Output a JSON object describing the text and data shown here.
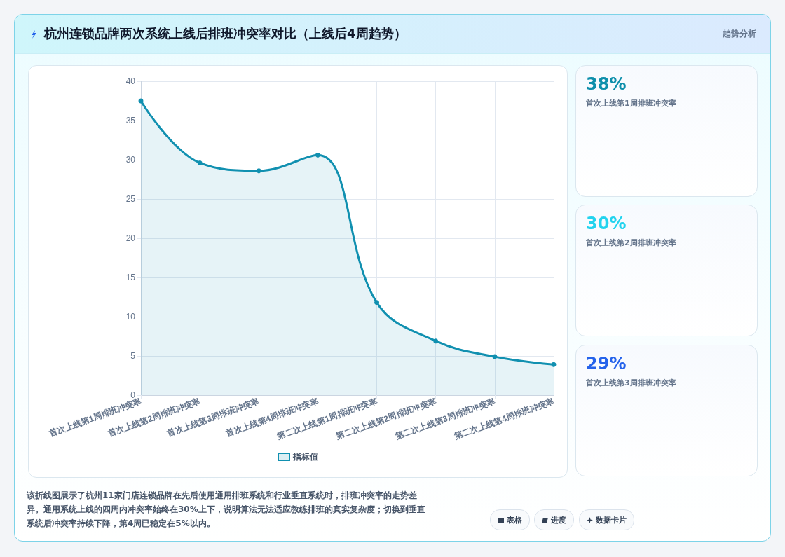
{
  "chart_data": {
    "type": "area",
    "title": "杭州连锁品牌两次系统上线后排班冲突率对比（上线后4周趋势）",
    "categories": [
      "首次上线第1周排班冲突率",
      "首次上线第2周排班冲突率",
      "首次上线第3周排班冲突率",
      "首次上线第4周排班冲突率",
      "第二次上线第1周排班冲突率",
      "第二次上线第2周排班冲突率",
      "第二次上线第3周排班冲突率",
      "第二次上线第4周排班冲突率"
    ],
    "series": [
      {
        "name": "指标值",
        "color": "#1190b0",
        "values": [
          37.5,
          29.6,
          28.6,
          30.6,
          11.8,
          6.9,
          4.9,
          3.9
        ]
      }
    ],
    "ylim": [
      0,
      40
    ],
    "yticks": [
      0,
      5,
      10,
      15,
      20,
      25,
      30,
      35,
      40
    ],
    "grid": true,
    "legend": "bottom",
    "marker": "circle",
    "line_style": "solid",
    "annotations": [
      "趋势分析",
      "38%",
      "首次上线第1周排班冲突率",
      "30%",
      "首次上线第2周排班冲突率",
      "29%",
      "首次上线第3周排班冲突率",
      "该折线图展示了杭州11家门店连锁品牌在先后使用通用排班系统和行业垂直系统时，排班冲突率的走势差异。通用系统上线的四周内冲突率始终在30%上下，说明算法无法适应教练排班的真实复杂度；切换到垂直系统后冲突率持续下降，第4周已稳定在5%以内。",
      "表格",
      "进度",
      "数据卡片"
    ]
  }
}
